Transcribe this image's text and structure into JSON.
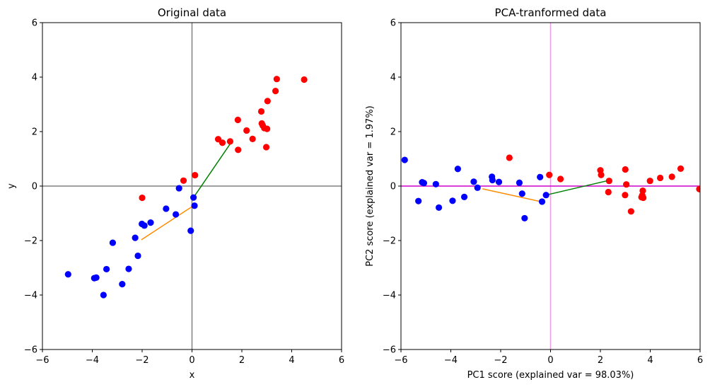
{
  "chart_data": [
    {
      "type": "scatter",
      "title": "Original data",
      "xlabel": "x",
      "ylabel": "y",
      "xlim": [
        -6,
        6
      ],
      "ylim": [
        -6,
        6
      ],
      "xticks": [
        "−6",
        "−4",
        "−2",
        "0",
        "2",
        "4",
        "6"
      ],
      "yticks": [
        "−6",
        "−4",
        "−2",
        "0",
        "2",
        "4",
        "6"
      ],
      "grid": false,
      "reference_lines": {
        "color": "#808080",
        "x": 0,
        "y": 0
      },
      "series": [
        {
          "color": "#0000ff",
          "points": [
            [
              -4.97,
              -3.24
            ],
            [
              -3.92,
              -3.38
            ],
            [
              -3.84,
              -3.36
            ],
            [
              -3.55,
              -4.0
            ],
            [
              -3.43,
              -3.05
            ],
            [
              -3.18,
              -2.08
            ],
            [
              -2.8,
              -3.6
            ],
            [
              -2.54,
              -3.04
            ],
            [
              -2.28,
              -1.9
            ],
            [
              -2.17,
              -2.56
            ],
            [
              -2.01,
              -1.39
            ],
            [
              -1.91,
              -1.45
            ],
            [
              -1.66,
              -1.34
            ],
            [
              -1.04,
              -0.83
            ],
            [
              -0.65,
              -1.04
            ],
            [
              -0.52,
              -0.08
            ],
            [
              -0.05,
              -1.64
            ],
            [
              0.06,
              -0.42
            ],
            [
              0.1,
              -0.72
            ]
          ]
        },
        {
          "color": "#ff0000",
          "points": [
            [
              -2.0,
              -0.43
            ],
            [
              -0.34,
              0.2
            ],
            [
              0.12,
              0.4
            ],
            [
              1.05,
              1.72
            ],
            [
              1.22,
              1.59
            ],
            [
              1.53,
              1.64
            ],
            [
              1.84,
              2.43
            ],
            [
              1.85,
              1.33
            ],
            [
              2.19,
              2.04
            ],
            [
              2.43,
              1.73
            ],
            [
              2.78,
              2.74
            ],
            [
              2.8,
              2.3
            ],
            [
              2.84,
              2.22
            ],
            [
              2.9,
              2.13
            ],
            [
              2.98,
              1.43
            ],
            [
              3.01,
              2.1
            ],
            [
              3.03,
              3.12
            ],
            [
              3.35,
              3.49
            ],
            [
              3.4,
              3.93
            ],
            [
              4.5,
              3.91
            ]
          ]
        }
      ],
      "segments": [
        {
          "color": "#ff8c00",
          "from": [
            -2.03,
            -1.97
          ],
          "to": [
            0.06,
            -0.72
          ]
        },
        {
          "color": "#008000",
          "from": [
            0.06,
            -0.42
          ],
          "to": [
            1.6,
            1.64
          ]
        }
      ]
    },
    {
      "type": "scatter",
      "title": "PCA-tranformed data",
      "xlabel": "PC1 score (explained var =  98.03%)",
      "ylabel": "PC2 score (explained var =  1.97%)",
      "xlim": [
        -6,
        6
      ],
      "ylim": [
        -6,
        6
      ],
      "xticks": [
        "−6",
        "−4",
        "−2",
        "0",
        "2",
        "4",
        "6"
      ],
      "yticks": [
        "−6",
        "−4",
        "−2",
        "0",
        "2",
        "4",
        "6"
      ],
      "grid": false,
      "reference_lines": {
        "x_color": "#ee9ee6",
        "y_color": "#cc00cc",
        "x": 0,
        "y": 0
      },
      "series": [
        {
          "color": "#0000ff",
          "points": [
            [
              -5.85,
              0.96
            ],
            [
              -5.3,
              -0.55
            ],
            [
              -5.15,
              0.14
            ],
            [
              -5.08,
              0.11
            ],
            [
              -4.6,
              0.07
            ],
            [
              -4.48,
              -0.79
            ],
            [
              -3.93,
              -0.54
            ],
            [
              -3.72,
              0.63
            ],
            [
              -3.46,
              -0.4
            ],
            [
              -3.08,
              0.16
            ],
            [
              -2.93,
              -0.06
            ],
            [
              -2.35,
              0.34
            ],
            [
              -2.33,
              0.22
            ],
            [
              -2.07,
              0.15
            ],
            [
              -1.25,
              0.12
            ],
            [
              -1.14,
              -0.28
            ],
            [
              -1.04,
              -1.18
            ],
            [
              -0.42,
              0.33
            ],
            [
              -0.34,
              -0.57
            ],
            [
              -0.18,
              -0.33
            ]
          ]
        },
        {
          "color": "#ff0000",
          "points": [
            [
              -1.65,
              1.04
            ],
            [
              -0.05,
              0.41
            ],
            [
              0.4,
              0.26
            ],
            [
              2.0,
              0.58
            ],
            [
              2.03,
              0.41
            ],
            [
              2.32,
              -0.22
            ],
            [
              2.35,
              0.19
            ],
            [
              2.99,
              -0.33
            ],
            [
              3.0,
              0.61
            ],
            [
              3.04,
              0.06
            ],
            [
              3.23,
              -0.93
            ],
            [
              3.65,
              -0.41
            ],
            [
              3.68,
              -0.34
            ],
            [
              3.7,
              -0.17
            ],
            [
              3.72,
              -0.43
            ],
            [
              3.99,
              0.19
            ],
            [
              4.4,
              0.3
            ],
            [
              4.87,
              0.34
            ],
            [
              5.22,
              0.64
            ],
            [
              5.97,
              -0.11
            ]
          ]
        }
      ],
      "segments": [
        {
          "color": "#ff8c00",
          "from": [
            -2.73,
            -0.1
          ],
          "to": [
            -0.35,
            -0.58
          ]
        },
        {
          "color": "#008000",
          "from": [
            -0.18,
            -0.33
          ],
          "to": [
            2.3,
            0.2
          ]
        }
      ]
    }
  ]
}
